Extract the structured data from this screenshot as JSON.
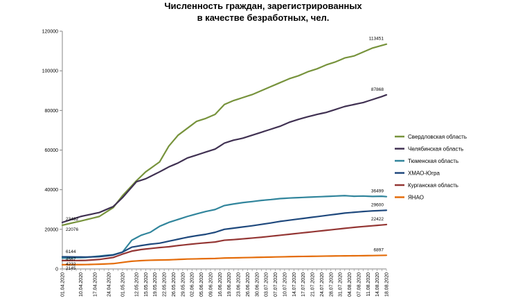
{
  "chart_data": {
    "type": "line",
    "title_line1": "Численность граждан, зарегистрированных",
    "title_line2": "в качестве безработных, чел.",
    "xlabel": "",
    "ylabel": "",
    "ylim": [
      0,
      120000
    ],
    "yticks": [
      "0",
      "20000",
      "40000",
      "60000",
      "80000",
      "100000",
      "120000"
    ],
    "grid": false,
    "legend_position": "right",
    "x": [
      "01.04.2020",
      "03.04.2020",
      "06.04.2020",
      "08.04.2020",
      "10.04.2020",
      "13.04.2020",
      "15.04.2020",
      "17.04.2020",
      "20.04.2020",
      "22.04.2020",
      "24.04.2020",
      "27.04.2020",
      "29.04.2020",
      "01.05.2020",
      "06.05.2020",
      "08.05.2020",
      "12.05.2020",
      "14.05.2020",
      "15.05.2020",
      "18.05.2020",
      "19.05.2020",
      "21.05.2020",
      "22.05.2020",
      "25.05.2020",
      "26.05.2020",
      "28.05.2020",
      "29.05.2020",
      "01.06.2020",
      "02.06.2020",
      "04.06.2020",
      "05.06.2020",
      "08.06.2020",
      "09.06.2020",
      "11.06.2020",
      "16.06.2020",
      "18.06.2020",
      "19.06.2020",
      "22.06.2020",
      "23.06.2020",
      "25.06.2020",
      "26.06.2020",
      "29.06.2020",
      "30.06.2020",
      "02.07.2020",
      "03.07.2020",
      "06.07.2020",
      "07.07.2020",
      "09.07.2020",
      "10.07.2020",
      "13.07.2020",
      "14.07.2020",
      "16.07.2020",
      "17.07.2020",
      "20.07.2020",
      "21.07.2020",
      "23.07.2020",
      "24.07.2020",
      "27.07.2020",
      "28.07.2020",
      "30.07.2020",
      "31.07.2020",
      "03.08.2020",
      "04.08.2020",
      "06.08.2020",
      "07.08.2020",
      "10.08.2020",
      "11.08.2020",
      "13.08.2020",
      "14.08.2020",
      "17.08.2020",
      "18.08.2020"
    ],
    "tick_labels": [
      "01.04.2020",
      "10.04.2020",
      "14.04.2020",
      "17.04.2020",
      "21.04.2020",
      "24.04.2020",
      "28.04.2020",
      "01.05.2020",
      "12.05.2020",
      "15.05.2020",
      "19.05.2020",
      "22.05.2020",
      "26.05.2020",
      "29.05.2020",
      "02.06.2020",
      "05.06.2020",
      "09.06.2020",
      "16.06.2020",
      "19.06.2020",
      "23.06.2020",
      "26.06.2020",
      "30.06.2020",
      "03.07.2020",
      "07.07.2020",
      "10.07.2020",
      "14.07.2020",
      "17.07.2020",
      "21.07.2020",
      "24.07.2020",
      "28.07.2020",
      "31.07.2020",
      "04.08.2020",
      "07.08.2020",
      "11.08.2020",
      "14.08.2020",
      "18.08.2020"
    ],
    "series": [
      {
        "name": "Свердловская область",
        "color": "#77933C",
        "start_label": "22076",
        "end_label": "113451",
        "anchors": [
          [
            0,
            22076
          ],
          [
            4,
            24200
          ],
          [
            8,
            26500
          ],
          [
            11,
            31000
          ],
          [
            13,
            37000
          ],
          [
            16,
            44500
          ],
          [
            18,
            49000
          ],
          [
            21,
            54000
          ],
          [
            23,
            62000
          ],
          [
            25,
            67500
          ],
          [
            27,
            71000
          ],
          [
            29,
            74500
          ],
          [
            31,
            76000
          ],
          [
            33,
            78000
          ],
          [
            35,
            83000
          ],
          [
            37,
            85000
          ],
          [
            39,
            86500
          ],
          [
            41,
            88000
          ],
          [
            43,
            90000
          ],
          [
            45,
            92000
          ],
          [
            47,
            94000
          ],
          [
            49,
            96000
          ],
          [
            51,
            97500
          ],
          [
            53,
            99500
          ],
          [
            55,
            101000
          ],
          [
            57,
            103000
          ],
          [
            59,
            104500
          ],
          [
            61,
            106500
          ],
          [
            63,
            107500
          ],
          [
            65,
            109500
          ],
          [
            67,
            111500
          ],
          [
            69,
            112800
          ],
          [
            70,
            113451
          ]
        ]
      },
      {
        "name": "Челябинская область",
        "color": "#403152",
        "start_label": "23482",
        "end_label": "87868",
        "anchors": [
          [
            0,
            23482
          ],
          [
            4,
            26500
          ],
          [
            8,
            28500
          ],
          [
            11,
            31500
          ],
          [
            13,
            36000
          ],
          [
            16,
            44000
          ],
          [
            18,
            45500
          ],
          [
            21,
            49000
          ],
          [
            23,
            51500
          ],
          [
            25,
            53500
          ],
          [
            27,
            56000
          ],
          [
            29,
            57500
          ],
          [
            31,
            59000
          ],
          [
            33,
            60500
          ],
          [
            35,
            63500
          ],
          [
            37,
            65000
          ],
          [
            39,
            66000
          ],
          [
            41,
            67500
          ],
          [
            43,
            69000
          ],
          [
            45,
            70500
          ],
          [
            47,
            72000
          ],
          [
            49,
            74000
          ],
          [
            51,
            75500
          ],
          [
            53,
            76800
          ],
          [
            55,
            78000
          ],
          [
            57,
            79000
          ],
          [
            59,
            80500
          ],
          [
            61,
            82000
          ],
          [
            63,
            83000
          ],
          [
            65,
            84000
          ],
          [
            67,
            85500
          ],
          [
            69,
            87000
          ],
          [
            70,
            87868
          ]
        ]
      },
      {
        "name": "Тюменская область",
        "color": "#31859C",
        "start_label": "",
        "end_label": "36499",
        "anchors": [
          [
            0,
            5500
          ],
          [
            5,
            5800
          ],
          [
            8,
            6500
          ],
          [
            11,
            7200
          ],
          [
            13,
            8500
          ],
          [
            15,
            14500
          ],
          [
            17,
            17000
          ],
          [
            19,
            18500
          ],
          [
            21,
            21500
          ],
          [
            23,
            23500
          ],
          [
            25,
            25000
          ],
          [
            27,
            26500
          ],
          [
            29,
            27800
          ],
          [
            31,
            29000
          ],
          [
            33,
            30000
          ],
          [
            35,
            32000
          ],
          [
            37,
            32800
          ],
          [
            39,
            33500
          ],
          [
            41,
            34000
          ],
          [
            43,
            34600
          ],
          [
            45,
            35000
          ],
          [
            47,
            35500
          ],
          [
            49,
            35800
          ],
          [
            51,
            36000
          ],
          [
            53,
            36200
          ],
          [
            55,
            36400
          ],
          [
            57,
            36600
          ],
          [
            59,
            36800
          ],
          [
            61,
            37000
          ],
          [
            63,
            36700
          ],
          [
            65,
            36800
          ],
          [
            67,
            36600
          ],
          [
            69,
            36700
          ],
          [
            70,
            36499
          ]
        ]
      },
      {
        "name": "ХМАО-Югра",
        "color": "#1F497D",
        "start_label": "6144",
        "end_label": "29600",
        "anchors": [
          [
            0,
            6144
          ],
          [
            5,
            6000
          ],
          [
            8,
            6200
          ],
          [
            11,
            7000
          ],
          [
            13,
            8500
          ],
          [
            15,
            11000
          ],
          [
            17,
            11800
          ],
          [
            19,
            12500
          ],
          [
            21,
            13000
          ],
          [
            23,
            14000
          ],
          [
            25,
            15000
          ],
          [
            27,
            16000
          ],
          [
            29,
            16800
          ],
          [
            31,
            17500
          ],
          [
            33,
            18500
          ],
          [
            35,
            20000
          ],
          [
            37,
            20600
          ],
          [
            39,
            21200
          ],
          [
            41,
            21800
          ],
          [
            43,
            22500
          ],
          [
            45,
            23200
          ],
          [
            47,
            24000
          ],
          [
            49,
            24600
          ],
          [
            51,
            25200
          ],
          [
            53,
            25800
          ],
          [
            55,
            26400
          ],
          [
            57,
            27000
          ],
          [
            59,
            27600
          ],
          [
            61,
            28200
          ],
          [
            63,
            28600
          ],
          [
            65,
            29000
          ],
          [
            67,
            29300
          ],
          [
            69,
            29500
          ],
          [
            70,
            29600
          ]
        ]
      },
      {
        "name": "Курганская область",
        "color": "#943634",
        "start_label": "4232",
        "end_label": "22422",
        "anchors": [
          [
            0,
            4232
          ],
          [
            5,
            4300
          ],
          [
            8,
            4800
          ],
          [
            11,
            5800
          ],
          [
            13,
            7500
          ],
          [
            15,
            9000
          ],
          [
            17,
            9800
          ],
          [
            19,
            10300
          ],
          [
            21,
            10800
          ],
          [
            23,
            11200
          ],
          [
            25,
            11800
          ],
          [
            27,
            12300
          ],
          [
            29,
            12800
          ],
          [
            31,
            13200
          ],
          [
            33,
            13600
          ],
          [
            35,
            14500
          ],
          [
            37,
            14800
          ],
          [
            39,
            15200
          ],
          [
            41,
            15600
          ],
          [
            43,
            16000
          ],
          [
            45,
            16500
          ],
          [
            47,
            17000
          ],
          [
            49,
            17500
          ],
          [
            51,
            18000
          ],
          [
            53,
            18500
          ],
          [
            55,
            19000
          ],
          [
            57,
            19500
          ],
          [
            59,
            20000
          ],
          [
            61,
            20500
          ],
          [
            63,
            21000
          ],
          [
            65,
            21400
          ],
          [
            67,
            21800
          ],
          [
            69,
            22200
          ],
          [
            70,
            22422
          ]
        ]
      },
      {
        "name": "ЯНАО",
        "color": "#E46C0A",
        "start_label": "2145",
        "end_label": "6897",
        "anchors": [
          [
            0,
            2145
          ],
          [
            5,
            2200
          ],
          [
            8,
            2400
          ],
          [
            11,
            2700
          ],
          [
            13,
            3300
          ],
          [
            15,
            3900
          ],
          [
            17,
            4200
          ],
          [
            19,
            4400
          ],
          [
            21,
            4500
          ],
          [
            23,
            4600
          ],
          [
            25,
            4800
          ],
          [
            27,
            5000
          ],
          [
            29,
            5100
          ],
          [
            31,
            5200
          ],
          [
            33,
            5300
          ],
          [
            35,
            5500
          ],
          [
            37,
            5600
          ],
          [
            39,
            5700
          ],
          [
            41,
            5800
          ],
          [
            43,
            5900
          ],
          [
            45,
            6000
          ],
          [
            47,
            6100
          ],
          [
            49,
            6200
          ],
          [
            51,
            6300
          ],
          [
            53,
            6350
          ],
          [
            55,
            6400
          ],
          [
            57,
            6500
          ],
          [
            59,
            6550
          ],
          [
            61,
            6600
          ],
          [
            63,
            6650
          ],
          [
            65,
            6700
          ],
          [
            67,
            6750
          ],
          [
            69,
            6850
          ],
          [
            70,
            6897
          ]
        ]
      }
    ],
    "extra_labels": [
      "4567"
    ]
  }
}
